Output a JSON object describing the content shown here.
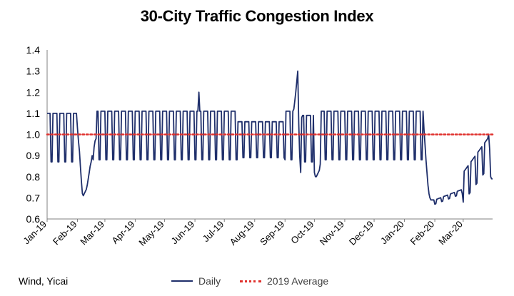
{
  "title": "30-City Traffic Congestion Index",
  "source": "Wind, Yicai",
  "legend": {
    "daily": "Daily",
    "average": "2019 Average"
  },
  "colors": {
    "daily": "#1f2f6b",
    "average": "#e0312d",
    "axis": "#808080"
  },
  "chart_data": {
    "type": "line",
    "title": "30-City Traffic Congestion Index",
    "xlabel": "",
    "ylabel": "",
    "ylim": [
      0.6,
      1.4
    ],
    "y_ticks": [
      "0.6",
      "0.7",
      "0.8",
      "0.9",
      "1.0",
      "1.1",
      "1.2",
      "1.3",
      "1.4"
    ],
    "x_ticks": [
      "Jan-19",
      "Feb-19",
      "Mar-19",
      "Apr-19",
      "May-19",
      "Jun-19",
      "Jul-19",
      "Aug-19",
      "Sep-19",
      "Oct-19",
      "Nov-19",
      "Dec-19",
      "Jan-20",
      "Feb-20",
      "Mar-20"
    ],
    "grid": false,
    "legend_position": "bottom",
    "series": [
      {
        "name": "Daily",
        "style": "solid",
        "frequency": "daily",
        "start": "2019-01-01",
        "end": "2020-03-31",
        "segments": [
          {
            "from": "2019-01-01",
            "to": "2019-01-31",
            "weekday": 1.1,
            "weekend": 0.87
          },
          {
            "from": "2019-02-01",
            "to": "2019-02-03",
            "values": [
              1.03,
              0.97,
              0.92
            ]
          },
          {
            "from": "2019-02-04",
            "to": "2019-02-10",
            "values": [
              0.85,
              0.78,
              0.72,
              0.71,
              0.72,
              0.73,
              0.74
            ]
          },
          {
            "from": "2019-02-11",
            "to": "2019-02-20",
            "values": [
              0.76,
              0.79,
              0.82,
              0.85,
              0.87,
              0.9,
              0.88,
              0.94,
              0.97,
              0.98
            ]
          },
          {
            "from": "2019-02-21",
            "to": "2019-09-09",
            "weekday": 1.11,
            "weekend": 0.88
          },
          {
            "from": "2019-06-05",
            "to": "2019-06-05",
            "values": [
              1.2
            ]
          },
          {
            "from": "2019-07-15",
            "to": "2019-08-31",
            "weekday": 1.06,
            "weekend": 0.89
          },
          {
            "from": "2019-09-10",
            "to": "2019-09-18",
            "values": [
              1.12,
              1.16,
              1.2,
              1.25,
              1.3,
              1.05,
              0.9,
              0.82,
              1.08
            ]
          },
          {
            "from": "2019-09-19",
            "to": "2019-09-30",
            "weekday": 1.09,
            "weekend": 0.87
          },
          {
            "from": "2019-10-01",
            "to": "2019-10-07",
            "values": [
              0.82,
              0.8,
              0.8,
              0.81,
              0.82,
              0.83,
              0.86
            ]
          },
          {
            "from": "2019-10-08",
            "to": "2020-01-20",
            "weekday": 1.11,
            "weekend": 0.88
          },
          {
            "from": "2020-01-21",
            "to": "2020-01-31",
            "values": [
              1.02,
              0.95,
              0.88,
              0.82,
              0.76,
              0.72,
              0.7,
              0.69,
              0.69,
              0.69,
              0.69
            ]
          },
          {
            "from": "2020-02-01",
            "to": "2020-02-29",
            "ramp": [
              0.69,
              0.74
            ],
            "weekend_drop": 0.02
          },
          {
            "from": "2020-03-01",
            "to": "2020-03-26",
            "ramp": [
              0.82,
              0.98
            ],
            "weekend_drop": 0.14
          },
          {
            "from": "2020-03-27",
            "to": "2020-03-31",
            "values": [
              1.0,
              0.93,
              0.8,
              0.79,
              0.79
            ]
          }
        ]
      },
      {
        "name": "2019 Average",
        "style": "dotted",
        "value": 1.0
      }
    ]
  }
}
